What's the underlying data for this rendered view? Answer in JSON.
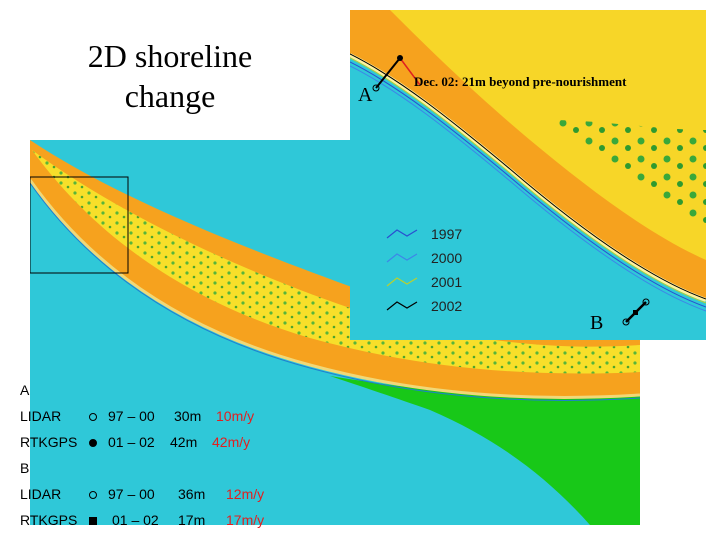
{
  "title": "2D shoreline change",
  "detail_map": {
    "label_a": "A",
    "label_b": "B",
    "note": "Dec. 02: 21m beyond pre-nourishment",
    "legend": [
      {
        "label": "1997",
        "color": "#2a4fd0"
      },
      {
        "label": "2000",
        "color": "#3d86e8"
      },
      {
        "label": "2001",
        "color": "#b8d030"
      },
      {
        "label": "2002",
        "color": "#000000"
      }
    ]
  },
  "profiles": [
    {
      "name": "A",
      "rows": [
        {
          "method": "LIDAR",
          "marker": "open-circle",
          "period": "97 – 00",
          "distance": "30m",
          "rate": "10m/y"
        },
        {
          "method": "RTKGPS",
          "marker": "filled-circle",
          "period": "01 – 02",
          "distance": "42m",
          "rate": "42m/y"
        }
      ]
    },
    {
      "name": "B",
      "rows": [
        {
          "method": "LIDAR",
          "marker": "open-circle",
          "period": "97 – 00",
          "distance": "36m",
          "rate": "12m/y"
        },
        {
          "method": "RTKGPS",
          "marker": "filled-square",
          "period": "01 – 02",
          "distance": "17m",
          "rate": "17m/y"
        }
      ]
    }
  ],
  "colors": {
    "ocean": "#2fc8d8",
    "sand_orange": "#f6a21e",
    "dune_yellow": "#f7df2a",
    "vegetation_green": "#18c818",
    "highlight_red": "#e02020"
  }
}
